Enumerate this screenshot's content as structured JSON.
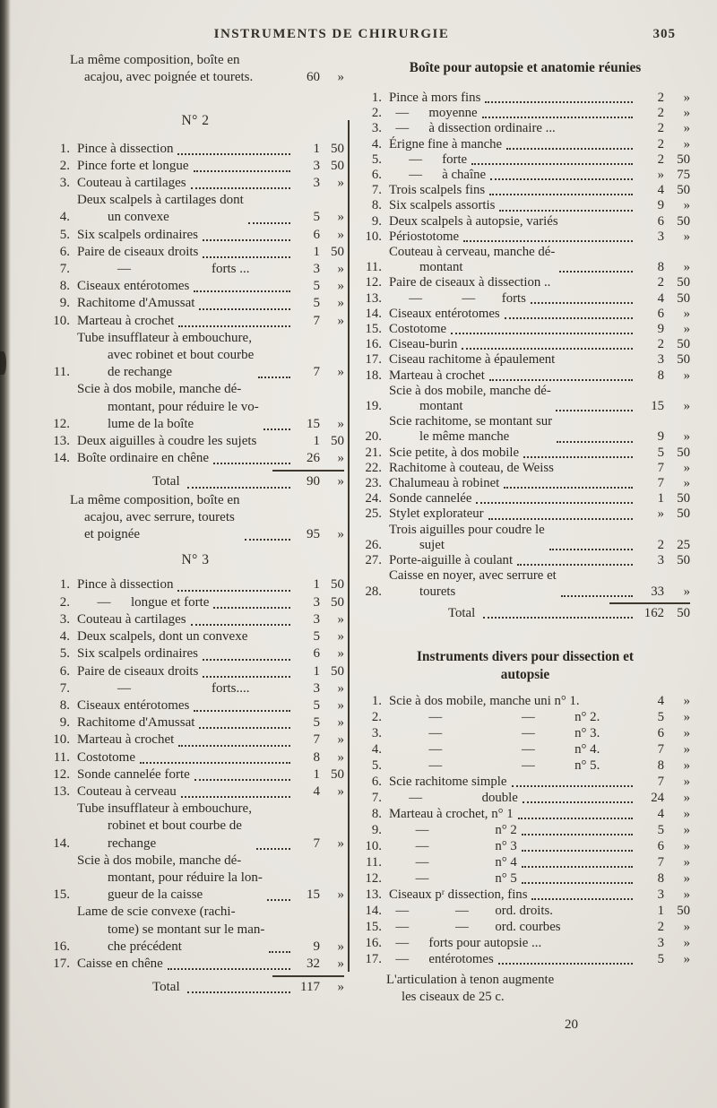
{
  "page": {
    "title": "INSTRUMENTS DE CHIRURGIE",
    "page_number": "305",
    "signature": "20"
  },
  "left": {
    "intro": {
      "label": "La même composition, boîte en\nacajou, avec poignée et tourets.",
      "fr": "60",
      "ct": "»",
      "dots": false
    },
    "section2": {
      "heading": "N° 2",
      "items": [
        {
          "n": "1.",
          "label": "Pince à dissection",
          "fr": "1",
          "ct": "50"
        },
        {
          "n": "2.",
          "label": "Pince forte et longue",
          "fr": "3",
          "ct": "50"
        },
        {
          "n": "3.",
          "label": "Couteau à cartilages",
          "fr": "3",
          "ct": "»"
        },
        {
          "n": "4.",
          "label": "Deux scalpels à cartilages dont\nun convexe",
          "fr": "5",
          "ct": "»"
        },
        {
          "n": "5.",
          "label": "Six scalpels ordinaires",
          "fr": "6",
          "ct": "»"
        },
        {
          "n": "6.",
          "label": "Paire de ciseaux droits",
          "fr": "1",
          "ct": "50"
        },
        {
          "n": "7.",
          "label": "   —      forts ...",
          "fr": "3",
          "ct": "»",
          "dots": false
        },
        {
          "n": "8.",
          "label": "Ciseaux entérotomes",
          "fr": "5",
          "ct": "»"
        },
        {
          "n": "9.",
          "label": "Rachitome d'Amussat",
          "fr": "5",
          "ct": "»"
        },
        {
          "n": "10.",
          "label": "Marteau à crochet",
          "fr": "7",
          "ct": "»"
        },
        {
          "n": "11.",
          "label": "Tube insufflateur à embouchure,\navec robinet et bout courbe\nde rechange",
          "fr": "7",
          "ct": "»"
        },
        {
          "n": "12.",
          "label": "Scie à dos mobile, manche dé-\nmontant, pour réduire le vo-\nlume de la boîte",
          "fr": "15",
          "ct": "»"
        },
        {
          "n": "13.",
          "label": "Deux aiguilles à coudre les sujets",
          "fr": "1",
          "ct": "50",
          "dots": false
        },
        {
          "n": "14.",
          "label": "Boîte ordinaire en chêne",
          "fr": "26",
          "ct": "»"
        }
      ],
      "total_label": "Total",
      "total_fr": "90",
      "total_ct": "»"
    },
    "between": {
      "label": "La même composition, boîte en\nacajou, avec serrure, tourets\net poignée",
      "fr": "95",
      "ct": "»",
      "dots": true
    },
    "section3": {
      "heading": "N° 3",
      "items": [
        {
          "n": "1.",
          "label": "Pince à dissection",
          "fr": "1",
          "ct": "50"
        },
        {
          "n": "2.",
          "label": "  —  longue et forte",
          "fr": "3",
          "ct": "50"
        },
        {
          "n": "3.",
          "label": "Couteau à cartilages",
          "fr": "3",
          "ct": "»"
        },
        {
          "n": "4.",
          "label": "Deux scalpels, dont un convexe",
          "fr": "5",
          "ct": "»",
          "dots": false
        },
        {
          "n": "5.",
          "label": "Six scalpels ordinaires",
          "fr": "6",
          "ct": "»"
        },
        {
          "n": "6.",
          "label": "Paire de ciseaux droits",
          "fr": "1",
          "ct": "50"
        },
        {
          "n": "7.",
          "label": "   —      forts....",
          "fr": "3",
          "ct": "»",
          "dots": false
        },
        {
          "n": "8.",
          "label": "Ciseaux entérotomes",
          "fr": "5",
          "ct": "»"
        },
        {
          "n": "9.",
          "label": "Rachitome d'Amussat",
          "fr": "5",
          "ct": "»"
        },
        {
          "n": "10.",
          "label": "Marteau à crochet",
          "fr": "7",
          "ct": "»"
        },
        {
          "n": "11.",
          "label": "Costotome",
          "fr": "8",
          "ct": "»"
        },
        {
          "n": "12.",
          "label": "Sonde cannelée forte",
          "fr": "1",
          "ct": "50"
        },
        {
          "n": "13.",
          "label": "Couteau à cerveau",
          "fr": "4",
          "ct": "»"
        },
        {
          "n": "14.",
          "label": "Tube insufflateur à embouchure,\nrobinet et bout courbe de\nrechange",
          "fr": "7",
          "ct": "»"
        },
        {
          "n": "15.",
          "label": "Scie à dos mobile, manche dé-\nmontant, pour réduire la lon-\ngueur de la caisse",
          "fr": "15",
          "ct": "»"
        },
        {
          "n": "16.",
          "label": "Lame de scie convexe (rachi-\ntome) se montant sur le man-\nche précédent",
          "fr": "9",
          "ct": "»"
        },
        {
          "n": "17.",
          "label": "Caisse en chêne",
          "fr": "32",
          "ct": "»"
        }
      ],
      "total_label": "Total",
      "total_fr": "117",
      "total_ct": "»"
    }
  },
  "right": {
    "sectionA": {
      "heading": "Boîte pour autopsie et anatomie réunies",
      "items": [
        {
          "n": "1.",
          "label": "Pince à mors fins",
          "fr": "2",
          "ct": "»"
        },
        {
          "n": "2.",
          "label": " —  moyenne",
          "fr": "2",
          "ct": "»"
        },
        {
          "n": "3.",
          "label": " —  à dissection ordinaire ...",
          "fr": "2",
          "ct": "»",
          "dots": false
        },
        {
          "n": "4.",
          "label": "Érigne fine à manche",
          "fr": "2",
          "ct": "»"
        },
        {
          "n": "5.",
          "label": "  —  forte",
          "fr": "2",
          "ct": "50"
        },
        {
          "n": "6.",
          "label": "  —  à chaîne",
          "fr": "»",
          "ct": "75"
        },
        {
          "n": "7.",
          "label": "Trois scalpels fins",
          "fr": "4",
          "ct": "50"
        },
        {
          "n": "8.",
          "label": "Six scalpels assortis",
          "fr": "9",
          "ct": "»"
        },
        {
          "n": "9.",
          "label": "Deux scalpels à autopsie, variés",
          "fr": "6",
          "ct": "50",
          "dots": false
        },
        {
          "n": "10.",
          "label": "Périostotome",
          "fr": "3",
          "ct": "»"
        },
        {
          "n": "11.",
          "label": "Couteau à cerveau, manche dé-\nmontant",
          "fr": "8",
          "ct": "»"
        },
        {
          "n": "12.",
          "label": "Paire de ciseaux à dissection ..",
          "fr": "2",
          "ct": "50",
          "dots": false
        },
        {
          "n": "13.",
          "label": "  —   —  forts",
          "fr": "4",
          "ct": "50"
        },
        {
          "n": "14.",
          "label": "Ciseaux entérotomes",
          "fr": "6",
          "ct": "»"
        },
        {
          "n": "15.",
          "label": "Costotome",
          "fr": "9",
          "ct": "»"
        },
        {
          "n": "16.",
          "label": "Ciseau-burin",
          "fr": "2",
          "ct": "50"
        },
        {
          "n": "17.",
          "label": "Ciseau rachitome à épaulement",
          "fr": "3",
          "ct": "50",
          "dots": false
        },
        {
          "n": "18.",
          "label": "Marteau à crochet",
          "fr": "8",
          "ct": "»"
        },
        {
          "n": "19.",
          "label": "Scie à dos mobile, manche dé-\nmontant",
          "fr": "15",
          "ct": "»"
        },
        {
          "n": "20.",
          "label": "Scie rachitome, se montant sur\nle même manche",
          "fr": "9",
          "ct": "»"
        },
        {
          "n": "21.",
          "label": "Scie petite, à dos mobile",
          "fr": "5",
          "ct": "50"
        },
        {
          "n": "22.",
          "label": "Rachitome à couteau, de Weiss",
          "fr": "7",
          "ct": "»",
          "dots": false
        },
        {
          "n": "23.",
          "label": "Chalumeau à robinet",
          "fr": "7",
          "ct": "»"
        },
        {
          "n": "24.",
          "label": "Sonde cannelée",
          "fr": "1",
          "ct": "50"
        },
        {
          "n": "25.",
          "label": "Stylet explorateur",
          "fr": "»",
          "ct": "50"
        },
        {
          "n": "26.",
          "label": "Trois aiguilles pour coudre le\nsujet",
          "fr": "2",
          "ct": "25"
        },
        {
          "n": "27.",
          "label": "Porte-aiguille à coulant",
          "fr": "3",
          "ct": "50"
        },
        {
          "n": "28.",
          "label": "Caisse en noyer, avec serrure et\ntourets",
          "fr": "33",
          "ct": "»"
        }
      ],
      "total_label": "Total",
      "total_fr": "162",
      "total_ct": "50"
    },
    "sectionB": {
      "heading": "Instruments divers pour dissection et\nautopsie",
      "items": [
        {
          "n": "1.",
          "label": "Scie à dos mobile, manche uni n° 1.",
          "fr": "4",
          "ct": "»",
          "dots": false
        },
        {
          "n": "2.",
          "label": "   —      —   n° 2.",
          "fr": "5",
          "ct": "»",
          "dots": false
        },
        {
          "n": "3.",
          "label": "   —      —   n° 3.",
          "fr": "6",
          "ct": "»",
          "dots": false
        },
        {
          "n": "4.",
          "label": "   —      —   n° 4.",
          "fr": "7",
          "ct": "»",
          "dots": false
        },
        {
          "n": "5.",
          "label": "   —      —   n° 5.",
          "fr": "8",
          "ct": "»",
          "dots": false
        },
        {
          "n": "6.",
          "label": "Scie rachitome simple",
          "fr": "7",
          "ct": "»"
        },
        {
          "n": "7.",
          "label": "  —     double",
          "fr": "24",
          "ct": "»"
        },
        {
          "n": "8.",
          "label": "Marteau à crochet, n° 1",
          "fr": "4",
          "ct": "»"
        },
        {
          "n": "9.",
          "label": "  —     n° 2",
          "fr": "5",
          "ct": "»"
        },
        {
          "n": "10.",
          "label": "  —     n° 3",
          "fr": "6",
          "ct": "»"
        },
        {
          "n": "11.",
          "label": "  —     n° 4",
          "fr": "7",
          "ct": "»"
        },
        {
          "n": "12.",
          "label": "  —     n° 5",
          "fr": "8",
          "ct": "»"
        },
        {
          "n": "13.",
          "label": "Ciseaux pʳ dissection, fins",
          "fr": "3",
          "ct": "»"
        },
        {
          "n": "14.",
          "label": " —    —  ord. droits.",
          "fr": "1",
          "ct": "50",
          "dots": false
        },
        {
          "n": "15.",
          "label": " —    —  ord. courbes",
          "fr": "2",
          "ct": "»",
          "dots": false
        },
        {
          "n": "16.",
          "label": " —  forts pour autopsie ...",
          "fr": "3",
          "ct": "»",
          "dots": false
        },
        {
          "n": "17.",
          "label": " —  entérotomes",
          "fr": "5",
          "ct": "»"
        }
      ]
    },
    "note": "L'articulation à tenon augmente\nles ciseaux de 25 c."
  }
}
